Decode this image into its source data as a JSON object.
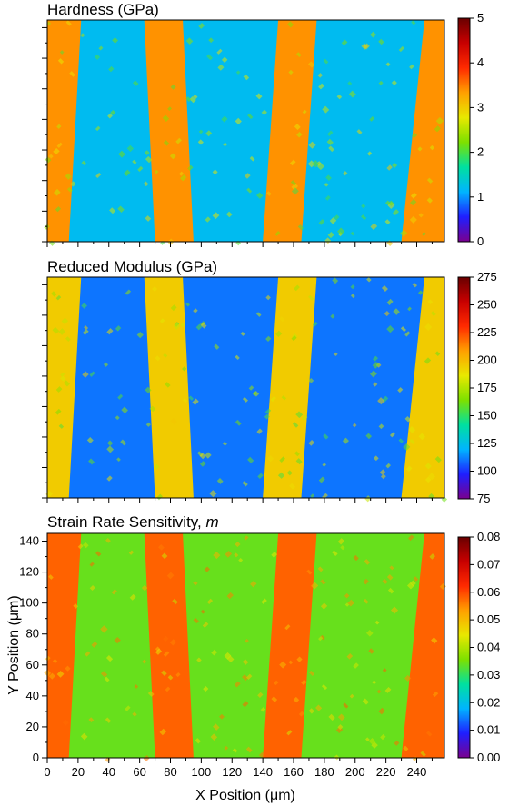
{
  "chart_data": [
    {
      "type": "heatmap",
      "title": "Hardness (GPa)",
      "colorbar": {
        "ticks": [
          "0",
          "1",
          "2",
          "3",
          "4",
          "5"
        ],
        "range": [
          0,
          5
        ]
      },
      "band_values": {
        "high": 3.4,
        "low": 1.2
      },
      "xlim": [
        0,
        258
      ],
      "ylim": [
        0,
        145
      ],
      "x_ticks_labeled": false,
      "y_ticks_labeled": false
    },
    {
      "type": "heatmap",
      "title": "Reduced Modulus (GPa)",
      "colorbar": {
        "ticks": [
          "75",
          "100",
          "125",
          "150",
          "175",
          "200",
          "225",
          "250",
          "275"
        ],
        "range": [
          75,
          275
        ]
      },
      "band_values": {
        "high": 195,
        "low": 110
      },
      "xlim": [
        0,
        258
      ],
      "ylim": [
        0,
        145
      ],
      "x_ticks_labeled": false,
      "y_ticks_labeled": false
    },
    {
      "type": "heatmap",
      "title": "Strain Rate Sensitivity, m",
      "title_main": "Strain Rate Sensitivity, ",
      "title_italic": "m",
      "colorbar": {
        "ticks": [
          "0.00",
          "0.01",
          "0.02",
          "0.03",
          "0.04",
          "0.05",
          "0.06",
          "0.07",
          "0.08"
        ],
        "range": [
          0,
          0.08
        ]
      },
      "band_values": {
        "high": 0.058,
        "low": 0.034
      },
      "xlabel": "X Position (μm)",
      "ylabel": "Y Position (μm)",
      "x_ticks": [
        "0",
        "20",
        "40",
        "60",
        "80",
        "100",
        "120",
        "140",
        "160",
        "180",
        "200",
        "220",
        "240"
      ],
      "y_ticks": [
        "0",
        "20",
        "40",
        "60",
        "80",
        "100",
        "120",
        "140"
      ],
      "xlim": [
        0,
        258
      ],
      "ylim": [
        0,
        145
      ]
    }
  ],
  "bands": {
    "high_regions": [
      {
        "top": [
          0,
          22
        ],
        "bottom": [
          0,
          14
        ]
      },
      {
        "top": [
          63,
          88
        ],
        "bottom": [
          70,
          95
        ]
      },
      {
        "top": [
          150,
          175
        ],
        "bottom": [
          140,
          165
        ]
      },
      {
        "top": [
          245,
          258
        ],
        "bottom": [
          230,
          258
        ]
      }
    ]
  },
  "colors": {
    "colormap": [
      "#7a008f",
      "#1f1fff",
      "#00b4ff",
      "#00e0a0",
      "#7de000",
      "#e8e800",
      "#ffa000",
      "#ff2a00",
      "#c80000",
      "#6a0000"
    ]
  }
}
